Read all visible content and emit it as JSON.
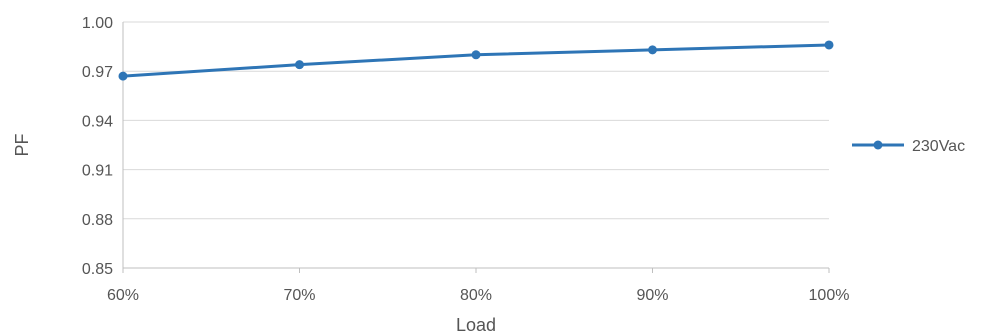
{
  "chart_data": {
    "type": "line",
    "xlabel": "Load",
    "ylabel": "PF",
    "categories": [
      "60%",
      "70%",
      "80%",
      "90%",
      "100%"
    ],
    "y_ticks": [
      "0.85",
      "0.88",
      "0.91",
      "0.94",
      "0.97",
      "1.00"
    ],
    "ylim": [
      0.85,
      1.0
    ],
    "grid": true,
    "legend_position": "right",
    "series": [
      {
        "name": "230Vac",
        "color": "#2e75b6",
        "values": [
          0.967,
          0.974,
          0.98,
          0.983,
          0.986
        ]
      }
    ]
  }
}
